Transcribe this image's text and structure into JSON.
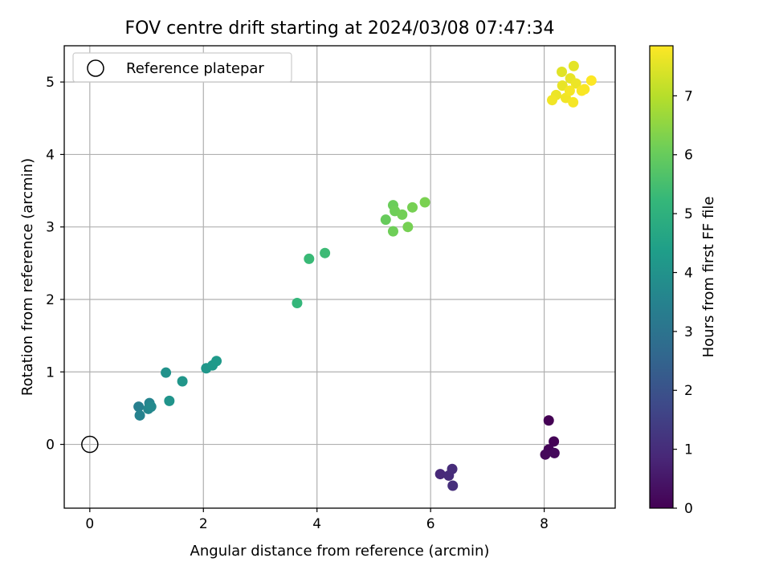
{
  "chart_data": {
    "type": "scatter",
    "title": "FOV centre drift starting at 2024/03/08 07:47:34",
    "xlabel": "Angular distance from reference (arcmin)",
    "ylabel": "Rotation from reference (arcmin)",
    "xlim": [
      -0.45,
      9.25
    ],
    "ylim": [
      -0.88,
      5.5
    ],
    "xticks": [
      0,
      2,
      4,
      6,
      8
    ],
    "yticks": [
      0,
      1,
      2,
      3,
      4,
      5
    ],
    "grid": true,
    "legend": {
      "placement": "top-left",
      "entries": [
        "Reference platepar"
      ]
    },
    "reference_point": {
      "x": 0,
      "y": 0
    },
    "colorbar": {
      "label": "Hours from first FF file",
      "range": [
        0,
        7.85
      ],
      "ticks": [
        0,
        1,
        2,
        3,
        4,
        5,
        6,
        7
      ],
      "colormap": "viridis",
      "colors": [
        "#440154",
        "#482878",
        "#3e4989",
        "#31688e",
        "#26828e",
        "#1f9e89",
        "#35b779",
        "#6ece58",
        "#b5de2b",
        "#fde725"
      ]
    },
    "points": [
      {
        "x": 8.08,
        "y": 0.33,
        "hours": 0.0
      },
      {
        "x": 8.17,
        "y": 0.04,
        "hours": 0.05
      },
      {
        "x": 8.08,
        "y": -0.07,
        "hours": 0.1
      },
      {
        "x": 8.02,
        "y": -0.14,
        "hours": 0.15
      },
      {
        "x": 8.18,
        "y": -0.12,
        "hours": 0.2
      },
      {
        "x": 6.17,
        "y": -0.41,
        "hours": 0.9
      },
      {
        "x": 6.32,
        "y": -0.43,
        "hours": 0.95
      },
      {
        "x": 6.38,
        "y": -0.34,
        "hours": 1.0
      },
      {
        "x": 6.39,
        "y": -0.57,
        "hours": 1.05
      },
      {
        "x": 0.86,
        "y": 0.52,
        "hours": 3.4
      },
      {
        "x": 0.88,
        "y": 0.4,
        "hours": 3.5
      },
      {
        "x": 1.05,
        "y": 0.57,
        "hours": 3.55
      },
      {
        "x": 1.03,
        "y": 0.49,
        "hours": 3.6
      },
      {
        "x": 1.08,
        "y": 0.52,
        "hours": 3.7
      },
      {
        "x": 1.34,
        "y": 0.99,
        "hours": 4.0
      },
      {
        "x": 1.4,
        "y": 0.6,
        "hours": 4.05
      },
      {
        "x": 1.63,
        "y": 0.87,
        "hours": 4.1
      },
      {
        "x": 2.05,
        "y": 1.05,
        "hours": 4.15
      },
      {
        "x": 2.16,
        "y": 1.09,
        "hours": 4.2
      },
      {
        "x": 2.23,
        "y": 1.15,
        "hours": 4.25
      },
      {
        "x": 3.65,
        "y": 1.95,
        "hours": 5.2
      },
      {
        "x": 3.86,
        "y": 2.56,
        "hours": 5.3
      },
      {
        "x": 4.14,
        "y": 2.64,
        "hours": 5.35
      },
      {
        "x": 5.21,
        "y": 3.1,
        "hours": 6.0
      },
      {
        "x": 5.34,
        "y": 3.3,
        "hours": 6.05
      },
      {
        "x": 5.37,
        "y": 3.22,
        "hours": 6.1
      },
      {
        "x": 5.5,
        "y": 3.17,
        "hours": 6.15
      },
      {
        "x": 5.34,
        "y": 2.94,
        "hours": 6.1
      },
      {
        "x": 5.6,
        "y": 3.0,
        "hours": 6.2
      },
      {
        "x": 5.68,
        "y": 3.27,
        "hours": 6.2
      },
      {
        "x": 5.9,
        "y": 3.34,
        "hours": 6.25
      },
      {
        "x": 8.31,
        "y": 5.14,
        "hours": 7.5
      },
      {
        "x": 8.52,
        "y": 5.22,
        "hours": 7.55
      },
      {
        "x": 8.32,
        "y": 4.95,
        "hours": 7.6
      },
      {
        "x": 8.46,
        "y": 5.05,
        "hours": 7.6
      },
      {
        "x": 8.56,
        "y": 4.98,
        "hours": 7.65
      },
      {
        "x": 8.21,
        "y": 4.82,
        "hours": 7.65
      },
      {
        "x": 8.14,
        "y": 4.75,
        "hours": 7.7
      },
      {
        "x": 8.38,
        "y": 4.78,
        "hours": 7.7
      },
      {
        "x": 8.45,
        "y": 4.88,
        "hours": 7.75
      },
      {
        "x": 8.51,
        "y": 4.72,
        "hours": 7.75
      },
      {
        "x": 8.66,
        "y": 4.88,
        "hours": 7.8
      },
      {
        "x": 8.71,
        "y": 4.9,
        "hours": 7.8
      },
      {
        "x": 8.83,
        "y": 5.02,
        "hours": 7.85
      }
    ]
  }
}
